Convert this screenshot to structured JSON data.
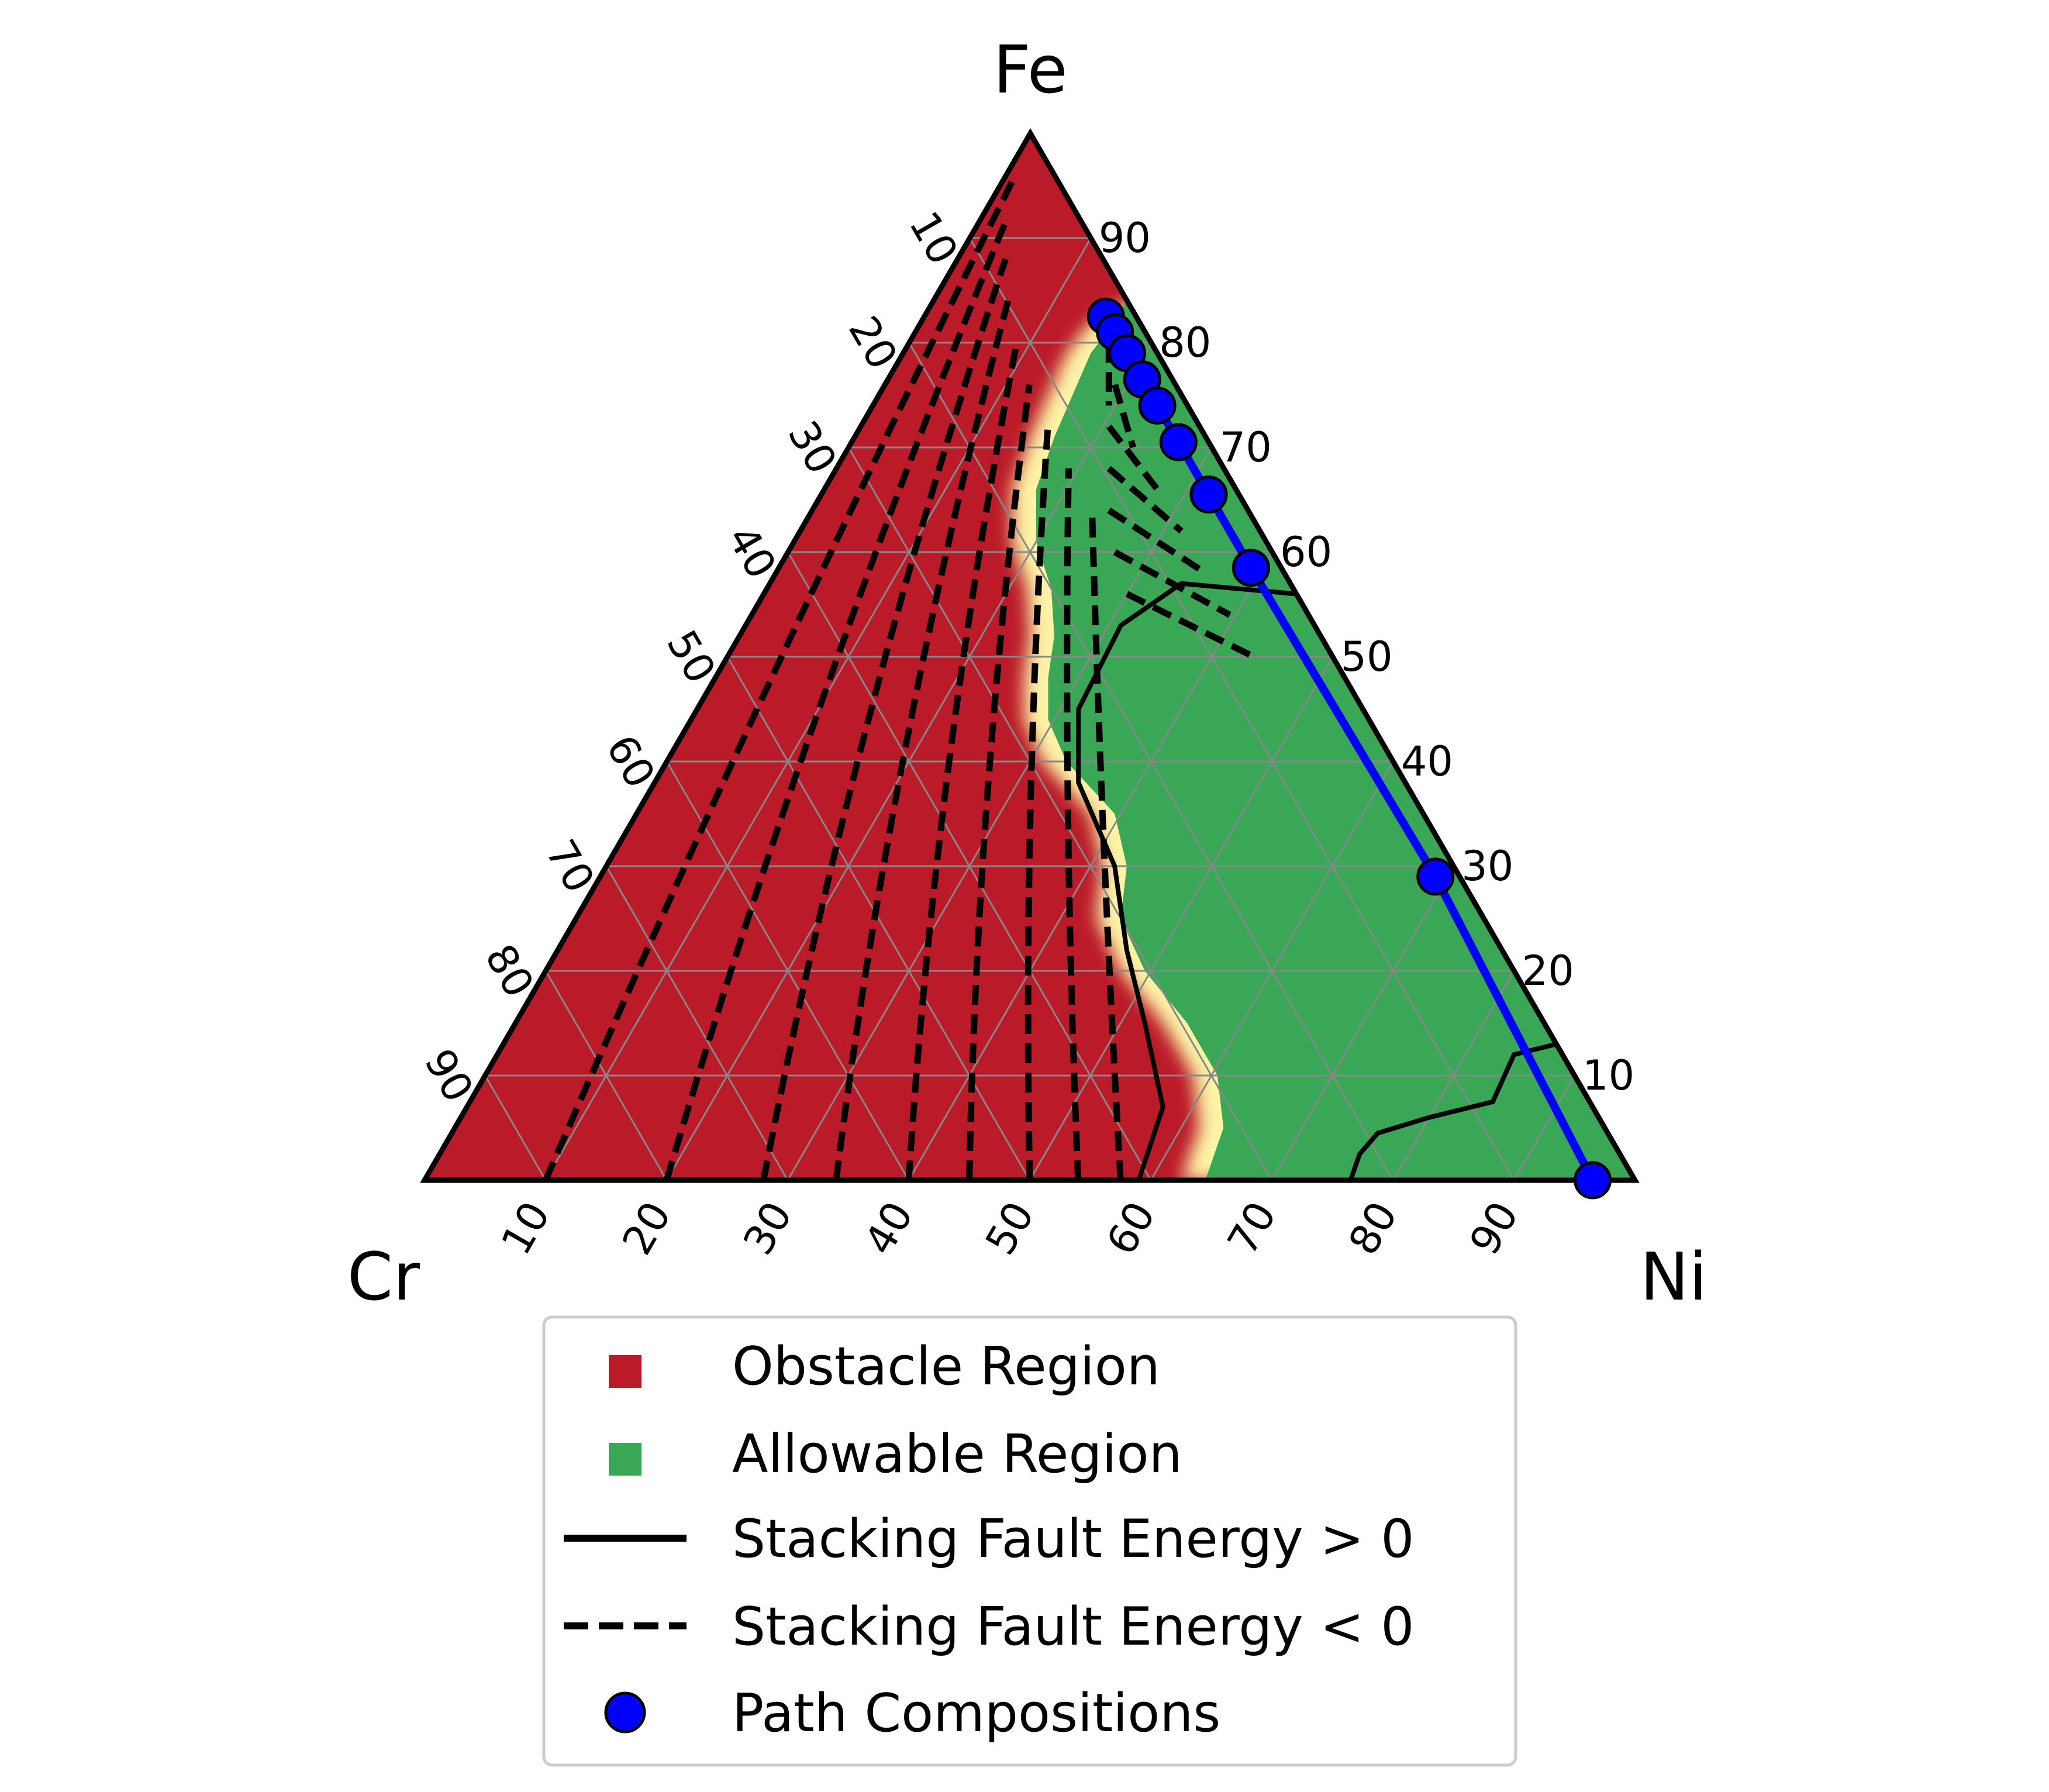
{
  "chart_data": {
    "type": "ternary",
    "vertices": {
      "top": "Fe",
      "left": "Cr",
      "right": "Ni"
    },
    "ticks": {
      "fe_axis": [
        "10",
        "20",
        "30",
        "40",
        "50",
        "60",
        "70",
        "80",
        "90"
      ],
      "cr_axis": [
        "10",
        "20",
        "30",
        "40",
        "50",
        "60",
        "70",
        "80",
        "90"
      ],
      "ni_axis": [
        "10",
        "20",
        "30",
        "40",
        "50",
        "60",
        "70",
        "80",
        "90"
      ]
    },
    "grid": true,
    "regions": {
      "obstacle_color": "#bb1a28",
      "allowable_color": "#3aa757",
      "transition_color": "#fdf3a6"
    },
    "path_color": "#0000ff",
    "path_compositions": [
      {
        "fe": 0.825,
        "ni": 0.15,
        "cr": 0.025
      },
      {
        "fe": 0.81,
        "ni": 0.165,
        "cr": 0.025
      },
      {
        "fe": 0.79,
        "ni": 0.185,
        "cr": 0.025
      },
      {
        "fe": 0.765,
        "ni": 0.21,
        "cr": 0.025
      },
      {
        "fe": 0.74,
        "ni": 0.235,
        "cr": 0.025
      },
      {
        "fe": 0.705,
        "ni": 0.27,
        "cr": 0.025
      },
      {
        "fe": 0.655,
        "ni": 0.32,
        "cr": 0.025
      },
      {
        "fe": 0.585,
        "ni": 0.39,
        "cr": 0.025
      },
      {
        "fe": 0.29,
        "ni": 0.69,
        "cr": 0.02
      },
      {
        "fe": 0.0,
        "ni": 0.965,
        "cr": 0.035
      }
    ],
    "legend": {
      "placement": "bottom",
      "items": [
        {
          "label": "Obstacle Region",
          "marker": "square",
          "color": "#bb1a28"
        },
        {
          "label": "Allowable Region",
          "marker": "square",
          "color": "#3aa757"
        },
        {
          "label": "Stacking Fault Energy > 0",
          "marker": "solid-line",
          "color": "#000000"
        },
        {
          "label": "Stacking Fault Energy < 0",
          "marker": "dashed-line",
          "color": "#000000"
        },
        {
          "label": "Path Compositions",
          "marker": "circle",
          "color": "#0000ff"
        }
      ]
    }
  }
}
